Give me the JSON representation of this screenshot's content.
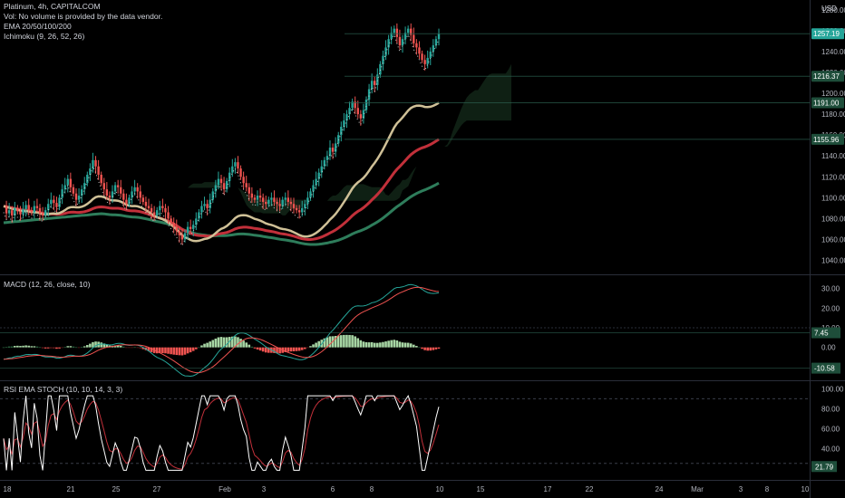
{
  "header": {
    "symbol_line": "Platinum, 4h, CAPITALCOM",
    "volume_note": "Vol: No volume is provided by the data vendor.",
    "ema_label": "EMA 20/50/100/200",
    "ichimoku_label": "Ichimoku (9, 26, 52, 26)",
    "currency": "USD"
  },
  "panes": {
    "macd_label": "MACD (12, 26, close, 10)",
    "rsi_label": "RSI EMA STOCH (10, 10, 14, 3, 3)"
  },
  "colors": {
    "background": "#000000",
    "up": "#26a69a",
    "down": "#ef5350",
    "ema20": "#cfc097",
    "ema50": "#c2303a",
    "ema100": "#2e7d5b",
    "cloud": "#1b3a24",
    "macd": "#26a69a",
    "signal": "#ef5350",
    "stoch_k": "#ffffff",
    "stoch_d": "#c2303a"
  },
  "chart_data": [
    {
      "type": "candlestick",
      "title": "Platinum, 4h, CAPITALCOM",
      "x_tick_labels": [
        "18",
        "21",
        "25",
        "27",
        "Feb",
        "3",
        "6",
        "8",
        "10",
        "15",
        "17",
        "22",
        "24",
        "Mar",
        "3",
        "8",
        "10"
      ],
      "y_ticks": [
        1040,
        1060,
        1080,
        1100,
        1120,
        1140,
        1160,
        1180,
        1200,
        1220,
        1240,
        1260,
        1280
      ],
      "ylim": [
        1030,
        1286
      ],
      "top_tick_partial": "1280.00",
      "last_price": 1257.19,
      "price_labels": [
        {
          "label": "1257.19",
          "value": 1257.19,
          "color": "#26a69a"
        },
        {
          "label": "1216.37",
          "value": 1216.37,
          "color": "#1e4d3a"
        },
        {
          "label": "1191.00",
          "value": 1191.0,
          "color": "#1e4d3a"
        },
        {
          "label": "1155.96",
          "value": 1155.96,
          "color": "#1e4d3a"
        }
      ],
      "close_series": [
        1092,
        1085,
        1088,
        1083,
        1090,
        1087,
        1084,
        1089,
        1093,
        1088,
        1086,
        1092,
        1090,
        1085,
        1083,
        1088,
        1094,
        1098,
        1095,
        1091,
        1100,
        1108,
        1112,
        1118,
        1110,
        1104,
        1098,
        1102,
        1108,
        1114,
        1122,
        1128,
        1136,
        1130,
        1122,
        1114,
        1108,
        1102,
        1100,
        1106,
        1112,
        1110,
        1104,
        1098,
        1094,
        1100,
        1106,
        1110,
        1106,
        1100,
        1096,
        1092,
        1090,
        1086,
        1083,
        1088,
        1092,
        1090,
        1086,
        1080,
        1076,
        1072,
        1068,
        1064,
        1060,
        1066,
        1072,
        1070,
        1074,
        1080,
        1086,
        1092,
        1094,
        1090,
        1098,
        1106,
        1112,
        1118,
        1114,
        1108,
        1116,
        1124,
        1130,
        1134,
        1128,
        1120,
        1114,
        1110,
        1104,
        1100,
        1098,
        1102,
        1100,
        1096,
        1094,
        1098,
        1100,
        1096,
        1094,
        1092,
        1098,
        1100,
        1096,
        1094,
        1090,
        1088,
        1086,
        1090,
        1094,
        1100,
        1106,
        1112,
        1118,
        1124,
        1130,
        1136,
        1140,
        1148,
        1144,
        1152,
        1160,
        1168,
        1174,
        1180,
        1186,
        1192,
        1186,
        1180,
        1176,
        1184,
        1194,
        1204,
        1212,
        1208,
        1218,
        1228,
        1236,
        1244,
        1252,
        1258,
        1262,
        1254,
        1246,
        1252,
        1258,
        1262,
        1256,
        1248,
        1244,
        1238,
        1232,
        1228,
        1234,
        1240,
        1246,
        1252,
        1257
      ],
      "ema20_end": 1191.0,
      "ema50_end": 1155.96,
      "ema100_end": 1114
    },
    {
      "type": "line",
      "title": "MACD (12, 26, close, 10)",
      "y_ticks": [
        0,
        10,
        20,
        30
      ],
      "ylim": [
        -14,
        34
      ],
      "price_labels": [
        {
          "label": "7.45",
          "value": 7.45
        },
        {
          "label": "-10.58",
          "value": -10.58
        }
      ]
    },
    {
      "type": "line",
      "title": "RSI EMA STOCH (10, 10, 14, 3, 3)",
      "y_ticks": [
        40,
        60,
        80,
        100
      ],
      "ylim": [
        12,
        104
      ],
      "bands": [
        90,
        25
      ],
      "price_labels": [
        {
          "label": "21.79",
          "value": 21.79
        }
      ]
    }
  ]
}
